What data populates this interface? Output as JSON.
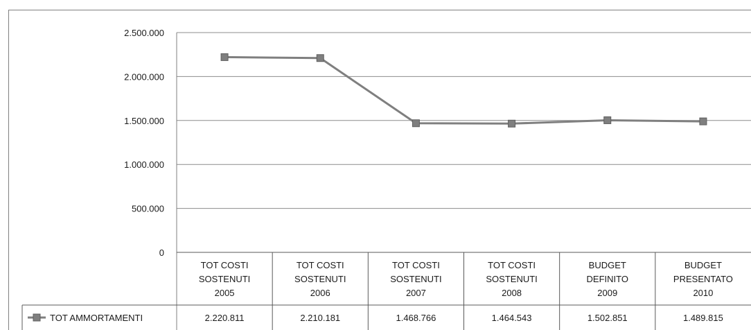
{
  "chart_data": {
    "type": "line",
    "title": "",
    "xlabel": "",
    "ylabel": "",
    "ylim": [
      0,
      2500000
    ],
    "yticks": [
      "0",
      "500.000",
      "1.000.000",
      "1.500.000",
      "2.000.000",
      "2.500.000"
    ],
    "categories": [
      [
        "TOT COSTI",
        "SOSTENUTI",
        "2005"
      ],
      [
        "TOT COSTI",
        "SOSTENUTI",
        "2006"
      ],
      [
        "TOT COSTI",
        "SOSTENUTI",
        "2007"
      ],
      [
        "TOT COSTI",
        "SOSTENUTI",
        "2008"
      ],
      [
        "BUDGET",
        "DEFINITO",
        "2009"
      ],
      [
        "BUDGET",
        "PRESENTATO",
        "2010"
      ]
    ],
    "series": [
      {
        "name": "TOT AMMORTAMENTI",
        "values": [
          2220811,
          2210181,
          1468766,
          1464543,
          1502851,
          1489815
        ],
        "labels": [
          "2.220.811",
          "2.210.181",
          "1.468.766",
          "1.464.543",
          "1.502.851",
          "1.489.815"
        ],
        "color": "#7f7f7f",
        "marker": "square"
      }
    ],
    "grid": true,
    "legend": "data-table-left",
    "data_table": true
  }
}
